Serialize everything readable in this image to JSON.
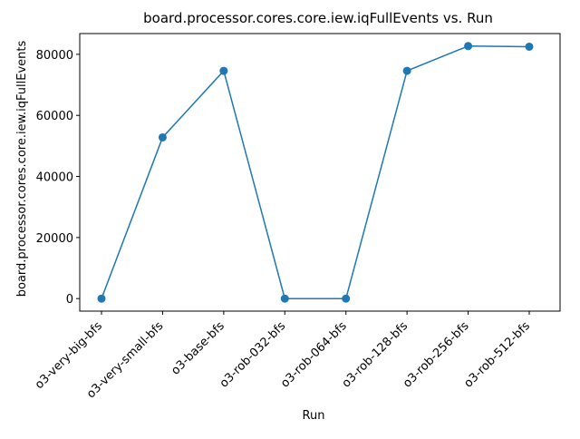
{
  "chart_data": {
    "type": "line",
    "title": "board.processor.cores.core.iew.iqFullEvents vs. Run",
    "xlabel": "Run",
    "ylabel": "board.processor.cores.core.iew.iqFullEvents",
    "categories": [
      "o3-very-big-bfs",
      "o3-very-small-bfs",
      "o3-base-bfs",
      "o3-rob-032-bfs",
      "o3-rob-064-bfs",
      "o3-rob-128-bfs",
      "o3-rob-256-bfs",
      "o3-rob-512-bfs"
    ],
    "series": [
      {
        "values": [
          0,
          52800,
          74600,
          0,
          0,
          74600,
          82700,
          82500
        ]
      }
    ],
    "ylim": [
      -4100,
      86800
    ],
    "yticks": [
      0,
      20000,
      40000,
      60000,
      80000
    ],
    "grid": false,
    "legend": "none",
    "markers": true,
    "color": "#1f77b4"
  }
}
